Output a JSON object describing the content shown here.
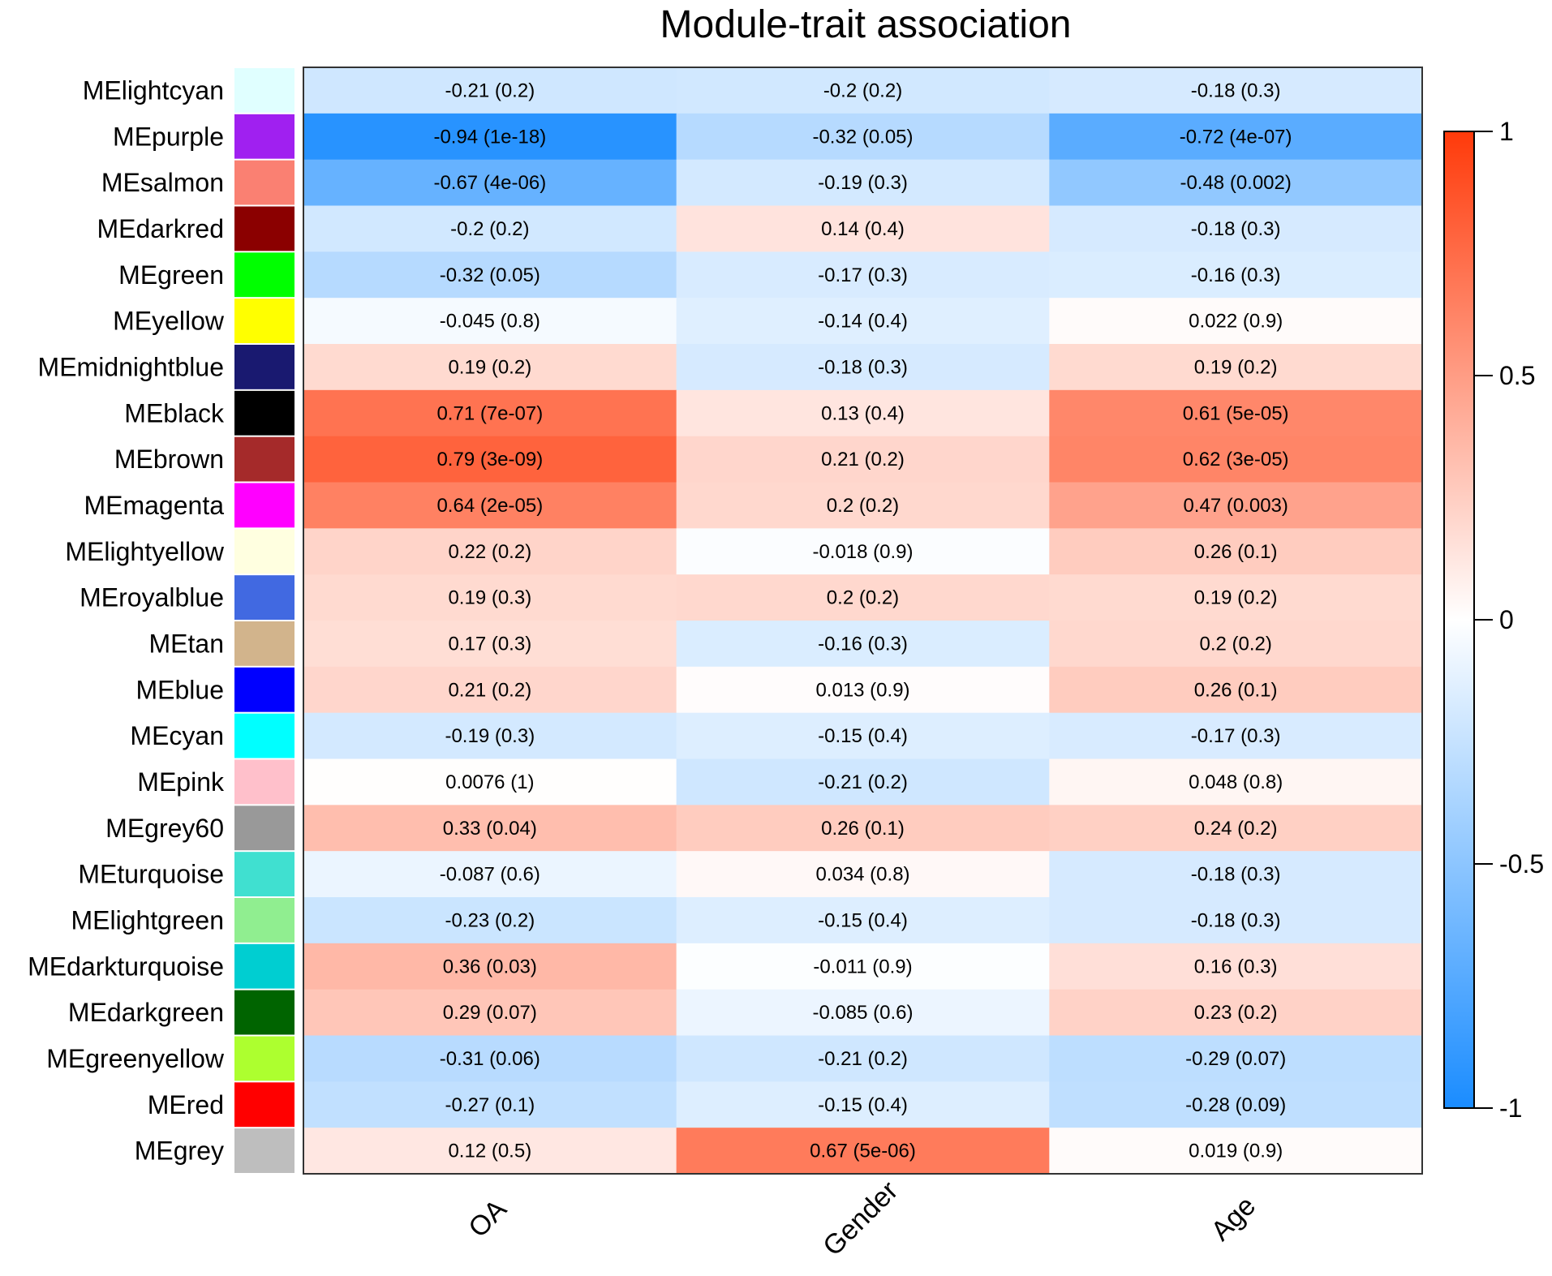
{
  "chart_data": {
    "type": "heatmap",
    "title": "Module-trait association",
    "columns": [
      "OA",
      "Gender",
      "Age"
    ],
    "rows": [
      {
        "module": "MElightcyan",
        "color": "#E0FFFF",
        "values": [
          -0.21,
          -0.2,
          -0.18
        ],
        "labels": [
          "-0.21  (0.2)",
          "-0.2  (0.2)",
          "-0.18  (0.3)"
        ]
      },
      {
        "module": "MEpurple",
        "color": "#A020F0",
        "values": [
          -0.94,
          -0.32,
          -0.72
        ],
        "labels": [
          "-0.94  (1e-18)",
          "-0.32  (0.05)",
          "-0.72  (4e-07)"
        ]
      },
      {
        "module": "MEsalmon",
        "color": "#FA8072",
        "values": [
          -0.67,
          -0.19,
          -0.48
        ],
        "labels": [
          "-0.67  (4e-06)",
          "-0.19  (0.3)",
          "-0.48  (0.002)"
        ]
      },
      {
        "module": "MEdarkred",
        "color": "#8B0000",
        "values": [
          -0.2,
          0.14,
          -0.18
        ],
        "labels": [
          "-0.2  (0.2)",
          "0.14  (0.4)",
          "-0.18  (0.3)"
        ]
      },
      {
        "module": "MEgreen",
        "color": "#00FF00",
        "values": [
          -0.32,
          -0.17,
          -0.16
        ],
        "labels": [
          "-0.32  (0.05)",
          "-0.17  (0.3)",
          "-0.16  (0.3)"
        ]
      },
      {
        "module": "MEyellow",
        "color": "#FFFF00",
        "values": [
          -0.045,
          -0.14,
          0.022
        ],
        "labels": [
          "-0.045  (0.8)",
          "-0.14  (0.4)",
          "0.022  (0.9)"
        ]
      },
      {
        "module": "MEmidnightblue",
        "color": "#191970",
        "values": [
          0.19,
          -0.18,
          0.19
        ],
        "labels": [
          "0.19  (0.2)",
          "-0.18  (0.3)",
          "0.19  (0.2)"
        ]
      },
      {
        "module": "MEblack",
        "color": "#000000",
        "values": [
          0.71,
          0.13,
          0.61
        ],
        "labels": [
          "0.71  (7e-07)",
          "0.13  (0.4)",
          "0.61  (5e-05)"
        ]
      },
      {
        "module": "MEbrown",
        "color": "#A52A2A",
        "values": [
          0.79,
          0.21,
          0.62
        ],
        "labels": [
          "0.79  (3e-09)",
          "0.21  (0.2)",
          "0.62  (3e-05)"
        ]
      },
      {
        "module": "MEmagenta",
        "color": "#FF00FF",
        "values": [
          0.64,
          0.2,
          0.47
        ],
        "labels": [
          "0.64  (2e-05)",
          "0.2  (0.2)",
          "0.47  (0.003)"
        ]
      },
      {
        "module": "MElightyellow",
        "color": "#FFFFE0",
        "values": [
          0.22,
          -0.018,
          0.26
        ],
        "labels": [
          "0.22  (0.2)",
          "-0.018  (0.9)",
          "0.26  (0.1)"
        ]
      },
      {
        "module": "MEroyalblue",
        "color": "#4169E1",
        "values": [
          0.19,
          0.2,
          0.19
        ],
        "labels": [
          "0.19  (0.3)",
          "0.2  (0.2)",
          "0.19  (0.2)"
        ]
      },
      {
        "module": "MEtan",
        "color": "#D2B48C",
        "values": [
          0.17,
          -0.16,
          0.2
        ],
        "labels": [
          "0.17  (0.3)",
          "-0.16  (0.3)",
          "0.2  (0.2)"
        ]
      },
      {
        "module": "MEblue",
        "color": "#0000FF",
        "values": [
          0.21,
          0.013,
          0.26
        ],
        "labels": [
          "0.21  (0.2)",
          "0.013  (0.9)",
          "0.26  (0.1)"
        ]
      },
      {
        "module": "MEcyan",
        "color": "#00FFFF",
        "values": [
          -0.19,
          -0.15,
          -0.17
        ],
        "labels": [
          "-0.19  (0.3)",
          "-0.15  (0.4)",
          "-0.17  (0.3)"
        ]
      },
      {
        "module": "MEpink",
        "color": "#FFC0CB",
        "values": [
          0.0076,
          -0.21,
          0.048
        ],
        "labels": [
          "0.0076  (1)",
          "-0.21  (0.2)",
          "0.048  (0.8)"
        ]
      },
      {
        "module": "MEgrey60",
        "color": "#999999",
        "values": [
          0.33,
          0.26,
          0.24
        ],
        "labels": [
          "0.33  (0.04)",
          "0.26  (0.1)",
          "0.24  (0.2)"
        ]
      },
      {
        "module": "MEturquoise",
        "color": "#40E0D0",
        "values": [
          -0.087,
          0.034,
          -0.18
        ],
        "labels": [
          "-0.087  (0.6)",
          "0.034  (0.8)",
          "-0.18  (0.3)"
        ]
      },
      {
        "module": "MElightgreen",
        "color": "#90EE90",
        "values": [
          -0.23,
          -0.15,
          -0.18
        ],
        "labels": [
          "-0.23  (0.2)",
          "-0.15  (0.4)",
          "-0.18  (0.3)"
        ]
      },
      {
        "module": "MEdarkturquoise",
        "color": "#00CED1",
        "values": [
          0.36,
          -0.011,
          0.16
        ],
        "labels": [
          "0.36  (0.03)",
          "-0.011  (0.9)",
          "0.16  (0.3)"
        ]
      },
      {
        "module": "MEdarkgreen",
        "color": "#006400",
        "values": [
          0.29,
          -0.085,
          0.23
        ],
        "labels": [
          "0.29  (0.07)",
          "-0.085  (0.6)",
          "0.23  (0.2)"
        ]
      },
      {
        "module": "MEgreenyellow",
        "color": "#ADFF2F",
        "values": [
          -0.31,
          -0.21,
          -0.29
        ],
        "labels": [
          "-0.31  (0.06)",
          "-0.21  (0.2)",
          "-0.29  (0.07)"
        ]
      },
      {
        "module": "MEred",
        "color": "#FF0000",
        "values": [
          -0.27,
          -0.15,
          -0.28
        ],
        "labels": [
          "-0.27  (0.1)",
          "-0.15  (0.4)",
          "-0.28  (0.09)"
        ]
      },
      {
        "module": "MEgrey",
        "color": "#BEBEBE",
        "values": [
          0.12,
          0.67,
          0.019
        ],
        "labels": [
          "0.12  (0.5)",
          "0.67  (5e-06)",
          "0.019  (0.9)"
        ]
      }
    ],
    "colorbar": {
      "range": [
        -1,
        1
      ],
      "ticks": [
        1,
        0.5,
        0,
        -0.5,
        -1
      ],
      "tick_labels": [
        "1",
        "0.5",
        "0",
        "-0.5",
        "-1"
      ],
      "low_color": "#1A8CFF",
      "mid_color": "#FFFFFF",
      "high_color": "#FF3A0A",
      "placement": "right"
    },
    "legend": "none",
    "grid": false
  }
}
